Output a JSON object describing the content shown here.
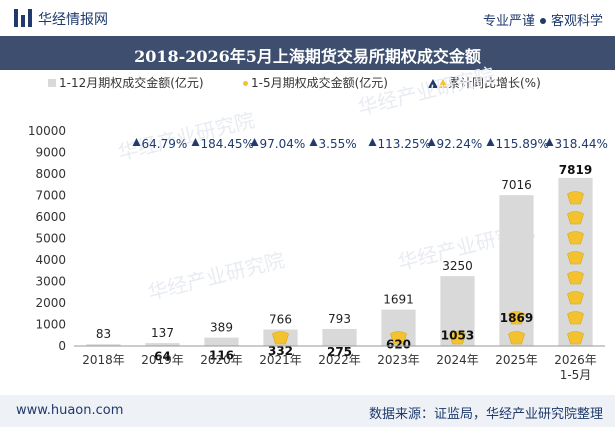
{
  "header": {
    "brand": "华经情报网",
    "tag1": "专业严谨",
    "tag2": "客观科学"
  },
  "title": "2018-2026年5月上海期货交易所期权成交金额",
  "legend": {
    "bar": "1-12月期权成交金额(亿元)",
    "dot": "1-5月期权成交金额(亿元)",
    "growth": "累计同比增长(%)"
  },
  "watermark": "华经产业研究院",
  "footer": {
    "url": "www.huaon.com",
    "source": "数据来源：证监局，华经产业研究院整理"
  },
  "colors": {
    "bar": "#d9d9d9",
    "coin": "#f2c230",
    "growth": "#1f3a6b",
    "title_bg": "#3d4e6e"
  },
  "chart_data": {
    "type": "bar",
    "categories": [
      "2018年",
      "2019年",
      "2020年",
      "2021年",
      "2022年",
      "2023年",
      "2024年",
      "2025年",
      "2026年\n1-5月"
    ],
    "ylim": [
      0,
      10000
    ],
    "yticks": [
      0,
      1000,
      2000,
      3000,
      4000,
      5000,
      6000,
      7000,
      8000,
      9000,
      10000
    ],
    "series": [
      {
        "name": "1-12月期权成交金额(亿元)",
        "values": [
          83,
          137,
          389,
          766,
          793,
          1691,
          3250,
          7016,
          null
        ],
        "labels": [
          "83",
          "137",
          "389",
          "766",
          "793",
          "1691",
          "3250",
          "7016",
          ""
        ]
      },
      {
        "name": "1-5月期权成交金额(亿元)",
        "values": [
          null,
          64,
          116,
          332,
          275,
          620,
          1053,
          1869,
          7819
        ],
        "labels": [
          "",
          "64",
          "116",
          "332",
          "275",
          "620",
          "1053",
          "1869",
          "7819"
        ]
      },
      {
        "name": "累计同比增长(%)",
        "values": [
          null,
          64.79,
          184.45,
          97.04,
          3.55,
          113.25,
          92.24,
          115.89,
          318.44
        ],
        "labels": [
          "",
          "64.79%",
          "184.45%",
          "97.04%",
          "3.55%",
          "113.25%",
          "92.24%",
          "115.89%",
          "318.44%"
        ]
      }
    ]
  }
}
